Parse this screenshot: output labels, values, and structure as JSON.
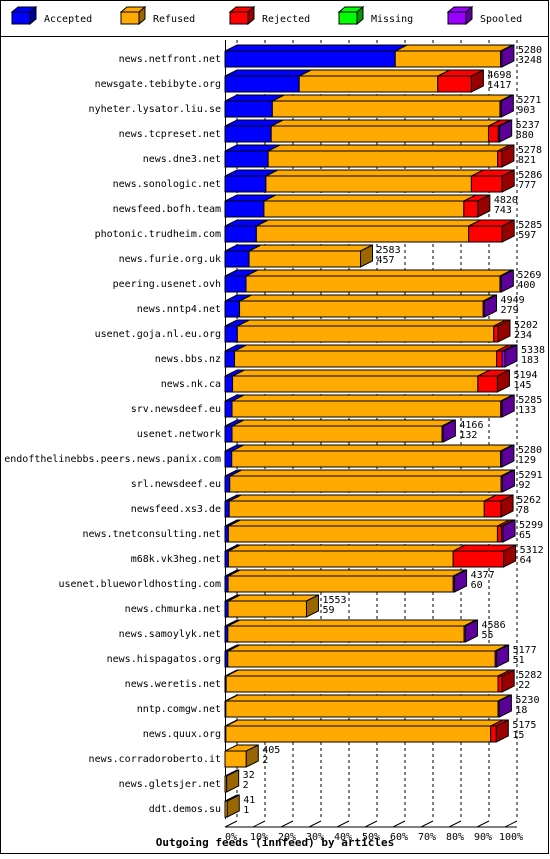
{
  "chart_data": {
    "type": "stacked-bar-3d",
    "orientation": "horizontal",
    "xlabel": "Outgoing feeds (innfeed) by articles",
    "categories": [
      "news.netfront.net",
      "newsgate.tebibyte.org",
      "nyheter.lysator.liu.se",
      "news.tcpreset.net",
      "news.dne3.net",
      "news.sonologic.net",
      "newsfeed.bofh.team",
      "photonic.trudheim.com",
      "news.furie.org.uk",
      "peering.usenet.ovh",
      "news.nntp4.net",
      "usenet.goja.nl.eu.org",
      "news.bbs.nz",
      "news.nk.ca",
      "srv.newsdeef.eu",
      "usenet.network",
      "endofthelinebbs.peers.news.panix.com",
      "srl.newsdeef.eu",
      "newsfeed.xs3.de",
      "news.tnetconsulting.net",
      "m68k.vk3heg.net",
      "usenet.blueworldhosting.com",
      "news.chmurka.net",
      "news.samoylyk.net",
      "news.hispagatos.org",
      "news.weretis.net",
      "nntp.comgw.net",
      "news.quux.org",
      "news.corradoroberto.it",
      "news.gletsjer.net",
      "ddt.demos.su"
    ],
    "series": [
      {
        "name": "Accepted",
        "color": "#0000ff",
        "values": [
          60.8,
          26.5,
          16.9,
          16.5,
          15.4,
          14.6,
          13.9,
          11.2,
          8.6,
          7.5,
          5.2,
          4.4,
          3.4,
          2.7,
          2.5,
          2.5,
          2.4,
          1.7,
          1.5,
          1.2,
          1.2,
          1.1,
          1.1,
          1.0,
          1.0,
          0.4,
          0.3,
          0.3,
          0,
          0,
          0
        ]
      },
      {
        "name": "Refused",
        "color": "#ffaa00",
        "values": [
          37.6,
          49.5,
          81.3,
          77.6,
          82.0,
          73.4,
          71.4,
          75.8,
          39.8,
          90.7,
          87.0,
          91.6,
          93.6,
          87.6,
          96.0,
          75.0,
          96.0,
          96.9,
          91.1,
          96.1,
          80.3,
          80.4,
          28.0,
          84.4,
          95.5,
          97.1,
          97.2,
          94.6,
          7.6,
          0.6,
          0.8
        ]
      },
      {
        "name": "Rejected",
        "color": "#ff0000",
        "values": [
          0,
          12,
          0,
          3.5,
          1.5,
          11,
          5,
          12,
          0,
          0,
          0,
          1.5,
          2,
          7,
          0,
          0,
          0,
          0,
          6,
          1.5,
          18,
          0,
          0,
          0,
          0,
          1.5,
          0,
          2,
          0,
          0,
          0
        ]
      },
      {
        "name": "Missing",
        "color": "#00ff00",
        "values": [
          0,
          0,
          0,
          0,
          0,
          0,
          0,
          0,
          0,
          0,
          0,
          0,
          0,
          0,
          0,
          0,
          0,
          0,
          0,
          0,
          0,
          0,
          0,
          0,
          0,
          0,
          0,
          0,
          0,
          0,
          0
        ]
      },
      {
        "name": "Spooled",
        "color": "#9900ff",
        "values": [
          0.5,
          0,
          0.5,
          0.5,
          0,
          0,
          0,
          0,
          0,
          0.5,
          0.5,
          0,
          1,
          0,
          0.5,
          0.5,
          0.5,
          0.5,
          0,
          0.5,
          0,
          0.5,
          0,
          0.5,
          0.5,
          0,
          0.5,
          0,
          0,
          0,
          0
        ]
      }
    ],
    "offered_labels": [
      5280,
      4698,
      5271,
      5237,
      5278,
      5286,
      4820,
      5285,
      2583,
      5269,
      4949,
      5202,
      5338,
      5194,
      5285,
      4166,
      5280,
      5291,
      5262,
      5299,
      5312,
      4377,
      1553,
      4586,
      5177,
      5282,
      5230,
      5175,
      405,
      32,
      41
    ],
    "accepted_labels": [
      3248,
      1417,
      903,
      880,
      821,
      777,
      743,
      597,
      457,
      400,
      279,
      234,
      183,
      145,
      133,
      132,
      129,
      92,
      78,
      65,
      64,
      60,
      59,
      55,
      51,
      22,
      18,
      15,
      2,
      2,
      1
    ],
    "xlim": [
      0,
      100
    ],
    "xticks": [
      {
        "value": 0,
        "label": "0%"
      },
      {
        "value": 10,
        "label": "10%"
      },
      {
        "value": 20,
        "label": "20%"
      },
      {
        "value": 30,
        "label": "30%"
      },
      {
        "value": 40,
        "label": "40%"
      },
      {
        "value": 50,
        "label": "50%"
      },
      {
        "value": 60,
        "label": "60%"
      },
      {
        "value": 70,
        "label": "70%"
      },
      {
        "value": 80,
        "label": "80%"
      },
      {
        "value": 90,
        "label": "90%"
      },
      {
        "value": 100,
        "label": "100%"
      }
    ],
    "grid": true
  }
}
